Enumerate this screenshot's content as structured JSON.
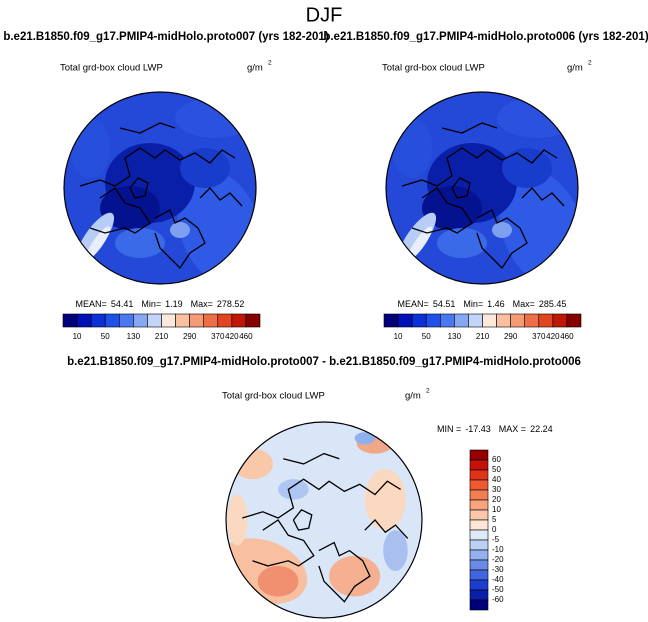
{
  "title": "DJF",
  "panels": [
    {
      "title": "b.e21.B1850.f09_g17.PMIP4-midHolo.proto007 (yrs 182-201)",
      "variable": "Total grd-box cloud LWP",
      "units": "g/m",
      "units_power": "2",
      "stats": [
        {
          "label": "MEAN=",
          "value": 54.41
        },
        {
          "label": "Min=",
          "value": 1.19
        },
        {
          "label": "Max=",
          "value": 278.52
        }
      ]
    },
    {
      "title": "b.e21.B1850.f09_g17.PMIP4-midHolo.proto006 (yrs 182-201)",
      "variable": "Total grd-box cloud LWP",
      "units": "g/m",
      "units_power": "2",
      "stats": [
        {
          "label": "MEAN=",
          "value": 54.51
        },
        {
          "label": "Min=",
          "value": 1.46
        },
        {
          "label": "Max=",
          "value": 285.45
        }
      ]
    }
  ],
  "colorbar": {
    "labels": [
      10,
      50,
      130,
      210,
      290,
      370,
      420,
      460
    ],
    "colors": [
      "#00007a",
      "#0010b8",
      "#0a30d8",
      "#2050e8",
      "#4a78f0",
      "#86a8f4",
      "#c2d4f8",
      "#fde8dc",
      "#f8c0a0",
      "#f49a74",
      "#ee6e48",
      "#e04420",
      "#c01808",
      "#860000"
    ]
  },
  "difference": {
    "title": "b.e21.B1850.f09_g17.PMIP4-midHolo.proto007 - b.e21.B1850.f09_g17.PMIP4-midHolo.proto006",
    "variable": "Total grd-box cloud LWP",
    "units": "g/m",
    "units_power": "2",
    "stats": [
      {
        "label": "MIN =",
        "value": -17.43
      },
      {
        "label": "MAX =",
        "value": 22.24
      }
    ],
    "colorbar": {
      "labels": [
        60,
        50,
        40,
        30,
        20,
        10,
        5,
        0,
        -5,
        -10,
        -20,
        -30,
        -40,
        -50,
        -60
      ],
      "colors": [
        "#960000",
        "#c41208",
        "#e03418",
        "#f05a30",
        "#f47e54",
        "#f8a47c",
        "#fac8a8",
        "#fde6d6",
        "#dfeaf8",
        "#bcd0f6",
        "#94b0f0",
        "#6a8ce8",
        "#3f66de",
        "#1c3ed0",
        "#0a1eaa",
        "#00007a"
      ]
    }
  }
}
